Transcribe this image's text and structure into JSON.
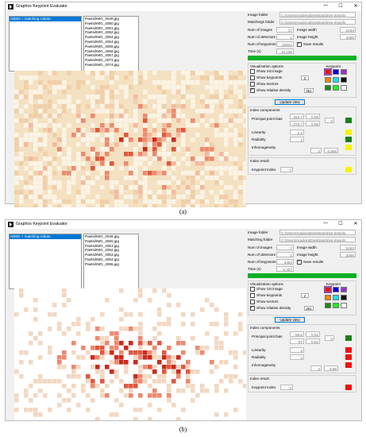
{
  "captions": [
    "(a)",
    "(b)"
  ],
  "panels": [
    {
      "title": "Graphos Keypoint Evaluator",
      "window_buttons": [
        "—",
        "☐",
        "✕"
      ],
      "selected_item": "ABSD + matching roboto",
      "files": [
        "Paetsi/IMG_4049.jpg",
        "Paetsi/IMG_4050.jpg",
        "Paetsi/IMG_4051.jpg",
        "Paetsi/IMG_4052.jpg",
        "Paetsi/IMG_4053.jpg",
        "Paetsi/IMG_4054.jpg",
        "Paetsi/IMG_4055.jpg",
        "Paetsi/IMG_4056.jpg",
        "Paetsi/IMG_4057.jpg",
        "Paetsi/IMG_4073.jpg",
        "Paetsi/IMG_4074.jpg"
      ],
      "info": {
        "image_folder_label": "Image folder",
        "image_folder": "C:/Users/Aguilera/Desktop/drive-downlo",
        "matching_folder_label": "Matchings folder",
        "matching_folder": "C:/Users/Aguilera/Desktop/drive-downlo",
        "num_images_label": "Num of images",
        "num_images": "17",
        "num_detectors_label": "Num of detectors",
        "num_detectors": "1",
        "num_keypoints_label": "Num of keypoints",
        "num_keypoints": "34621",
        "time_label": "Time (s)",
        "time": "10,199",
        "image_width_label": "Image width",
        "image_width": "5184",
        "image_height_label": "Image height",
        "image_height": "3456",
        "save_results": "Save results"
      },
      "viz": {
        "header": "Visualization options",
        "keypoint_header": "Keypoint",
        "show_first": "Show 1st image",
        "show_keypoints": "Show keypoints",
        "keypoints_size": "2",
        "show_sectors": "Show sectors",
        "show_density": "Show relative density",
        "density_value": "251",
        "update": "Update view"
      },
      "index": {
        "header": "Index components",
        "ppb_label": "Principal point bias",
        "ppb": [
          "262,7",
          "0,08",
          "275,7",
          "0,09"
        ],
        "ppb_total": "0",
        "linearity_label": "Linearity",
        "linearity": "2,2",
        "radiality_label": "Radiality",
        "radiality": "2",
        "inhomogeneity_label": "Inhomogeneity",
        "inhom_a": "2",
        "inhom_b": "0,856",
        "indicators": [
          "#1a7f1a",
          "#f4f400",
          "#1a7f1a",
          "#f4f400"
        ]
      },
      "result": {
        "header": "Index result",
        "label": "Keypoint Index",
        "value": "7",
        "color": "#f4f400"
      }
    },
    {
      "title": "Graphos Keypoint Evaluator",
      "window_buttons": [
        "—",
        "☐",
        "✕"
      ],
      "selected_item": "ABSD + matching roboto",
      "files": [
        "Paetsi/IMG_4049.jpg",
        "Paetsi/IMG_4050.jpg",
        "Paetsi/IMG_4051.jpg",
        "Paetsi/IMG_4052.jpg",
        "Paetsi/IMG_4053.jpg",
        "Paetsi/IMG_4054.jpg",
        "Paetsi/IMG_4055.jpg"
      ],
      "info": {
        "image_folder_label": "Image folder",
        "image_folder": "C:/Users/Aguilera/Desktop/drive-downlo",
        "matching_folder_label": "Matching folder",
        "matching_folder": "C:/Users/Aguilera/Desktop/drive-downlo",
        "num_images_label": "Num of images",
        "num_images": "7",
        "num_detectors_label": "Num of detectors",
        "num_detectors": "1",
        "num_keypoints_label": "Num of keypoints",
        "num_keypoints": "4464",
        "time_label": "Time (s)",
        "time": "8,307",
        "image_width_label": "Image width",
        "image_width": "5184",
        "image_height_label": "Image height",
        "image_height": "3456",
        "save_results": "Save results"
      },
      "viz": {
        "header": "Visualization options",
        "keypoint_header": "Keypoint",
        "show_first": "Show 1st image",
        "show_keypoints": "Show keypoints",
        "keypoints_size": "2",
        "show_sectors": "Show sectors",
        "show_density": "Show relative density",
        "density_value": "251",
        "update": "Update view"
      },
      "index": {
        "header": "Index components",
        "ppb_label": "Principal point bias",
        "ppb": [
          "59,6",
          "0,02",
          "97",
          "0,03"
        ],
        "ppb_total": "0",
        "linearity_label": "Linearity",
        "linearity": "4",
        "radiality_label": "Radiality",
        "radiality": "4",
        "inhomogeneity_label": "Inhomogeneity",
        "inhom_a": "2",
        "inhom_b": "0,88",
        "indicators": [
          "#1a7f1a",
          "#ee1111",
          "#ee1111",
          "#ee1111"
        ]
      },
      "result": {
        "header": "Index result",
        "label": "Keypoint Index",
        "value": "3",
        "color": "#ee1111"
      }
    }
  ],
  "swatch_colors": [
    "#ee1111",
    "#0000dd",
    "#9933cc",
    "#ff8800",
    "#22ddee",
    "#111111",
    "#1a8a1a",
    "#22ee22",
    "#ffffff"
  ],
  "progress_color": "#06b025"
}
